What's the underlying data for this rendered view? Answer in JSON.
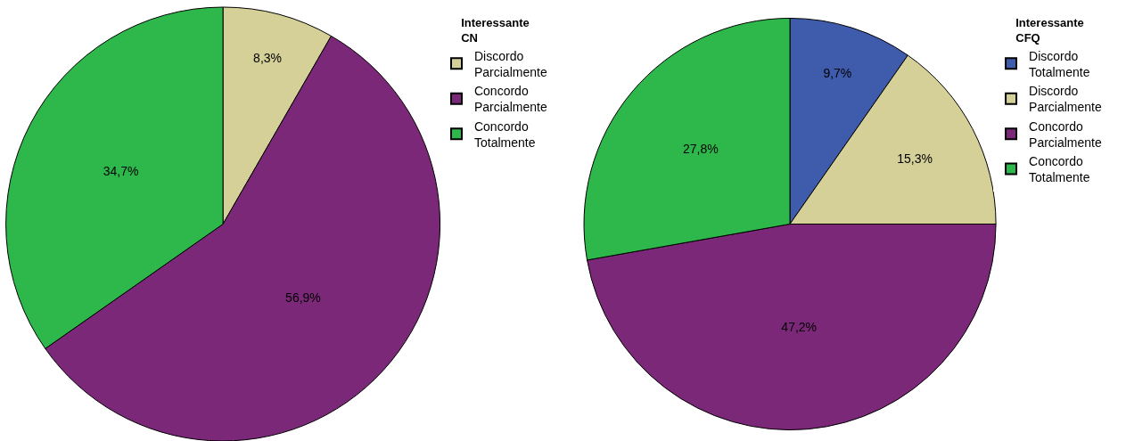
{
  "chart_data": [
    {
      "type": "pie",
      "legend_title": "Interessante CN",
      "categories": [
        "Discordo Parcialmente",
        "Concordo Parcialmente",
        "Concordo Totalmente"
      ],
      "values": [
        8.3,
        56.9,
        34.7
      ],
      "colors": [
        "#d5cf98",
        "#7b2879",
        "#2eb84b"
      ],
      "value_labels": [
        "8,3%",
        "56,9%",
        "34,7%"
      ],
      "legend": "right"
    },
    {
      "type": "pie",
      "legend_title": "Interessante CFQ",
      "categories": [
        "Discordo Totalmente",
        "Discordo Parcialmente",
        "Concordo Parcialmente",
        "Concordo Totalmente"
      ],
      "values": [
        9.7,
        15.3,
        47.2,
        27.8
      ],
      "colors": [
        "#3f5bab",
        "#d5cf98",
        "#7b2879",
        "#2eb84b"
      ],
      "value_labels": [
        "9,7%",
        "15,3%",
        "47,2%",
        "27,8%"
      ],
      "legend": "right"
    }
  ]
}
